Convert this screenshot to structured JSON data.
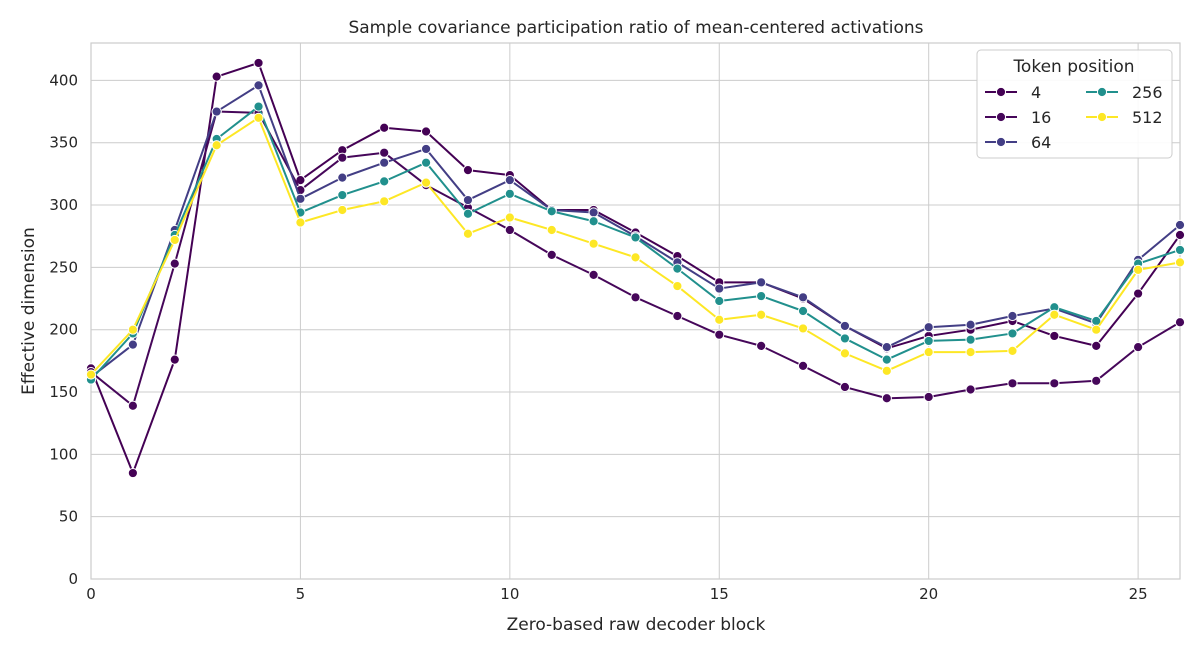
{
  "chart_data": {
    "type": "line",
    "title": "Sample covariance participation ratio of mean-centered activations",
    "xlabel": "Zero-based raw decoder block",
    "ylabel": "Effective dimension",
    "xlim": [
      0,
      26
    ],
    "ylim": [
      0,
      430
    ],
    "xticks": [
      0,
      5,
      10,
      15,
      20,
      25
    ],
    "yticks": [
      0,
      50,
      100,
      150,
      200,
      250,
      300,
      350,
      400
    ],
    "grid": true,
    "legend": {
      "title": "Token position",
      "placement": "top-right",
      "columns": 2
    },
    "x": [
      0,
      1,
      2,
      3,
      4,
      5,
      6,
      7,
      8,
      9,
      10,
      11,
      12,
      13,
      14,
      15,
      16,
      17,
      18,
      19,
      20,
      21,
      22,
      23,
      24,
      25,
      26
    ],
    "series": [
      {
        "name": "4",
        "color": "#440154",
        "values": [
          169,
          85,
          176,
          403,
          414,
          320,
          344,
          362,
          359,
          328,
          324,
          296,
          296,
          278,
          259,
          238,
          238,
          225,
          203,
          185,
          195,
          200,
          207,
          195,
          187,
          229,
          276
        ]
      },
      {
        "name": "16",
        "color": "#46075a",
        "values": [
          166,
          139,
          253,
          375,
          374,
          312,
          338,
          342,
          316,
          298,
          280,
          260,
          244,
          226,
          211,
          196,
          187,
          171,
          154,
          145,
          146,
          152,
          157,
          157,
          159,
          186,
          206
        ]
      },
      {
        "name": "64",
        "color": "#433e85",
        "values": [
          162,
          188,
          280,
          375,
          396,
          305,
          322,
          334,
          345,
          304,
          320,
          296,
          294,
          275,
          254,
          233,
          238,
          226,
          203,
          186,
          202,
          204,
          211,
          217,
          205,
          256,
          284
        ]
      },
      {
        "name": "256",
        "color": "#21908d",
        "values": [
          160,
          197,
          276,
          353,
          379,
          294,
          308,
          319,
          334,
          293,
          309,
          295,
          287,
          274,
          249,
          223,
          227,
          215,
          193,
          176,
          191,
          192,
          197,
          218,
          207,
          253,
          264
        ]
      },
      {
        "name": "512",
        "color": "#fde725",
        "values": [
          164,
          200,
          272,
          348,
          370,
          286,
          296,
          303,
          318,
          277,
          290,
          280,
          269,
          258,
          235,
          208,
          212,
          201,
          181,
          167,
          182,
          182,
          183,
          212,
          200,
          248,
          254
        ]
      }
    ]
  }
}
